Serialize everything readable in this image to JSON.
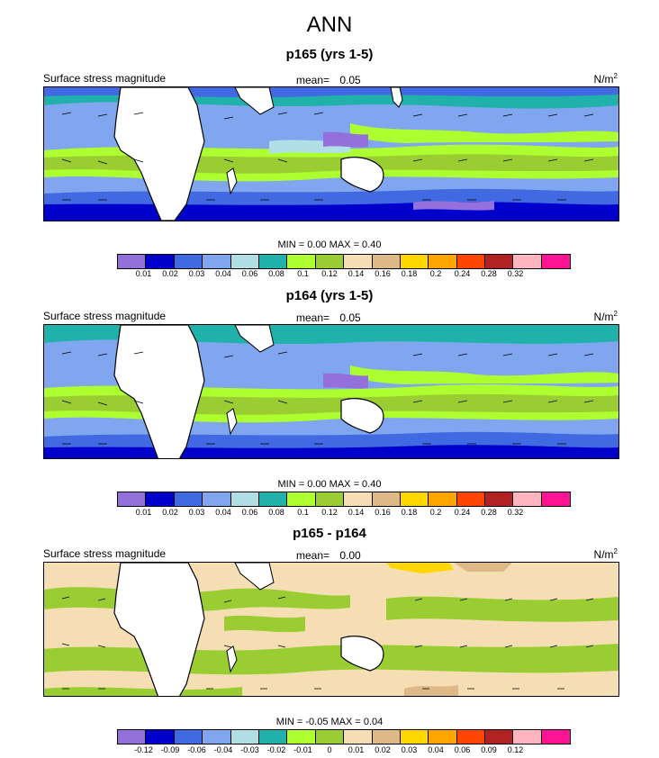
{
  "figure_title": "ANN",
  "colors": {
    "stress_palette": [
      "#9370db",
      "#0000cd",
      "#4169e1",
      "#7fa6ef",
      "#b0e0e6",
      "#20b2aa",
      "#adff2f",
      "#9acd32",
      "#f5deb3",
      "#deb887",
      "#ffd700",
      "#ffa500",
      "#ff4500",
      "#b22222",
      "#ffb6c1",
      "#ff1493"
    ],
    "land": "#ffffff",
    "coast": "#000000"
  },
  "panels": [
    {
      "title": "p165 (yrs 1-5)",
      "variable": "Surface stress magnitude",
      "mean_label": "mean=",
      "mean_value": "0.05",
      "units": "N/m",
      "units_exp": "2",
      "minmax_text": "MIN =  0.00 MAX =  0.40",
      "colorbar_ticks": [
        "0.01",
        "0.02",
        "0.03",
        "0.04",
        "0.06",
        "0.08",
        "0.1",
        "0.12",
        "0.14",
        "0.16",
        "0.18",
        "0.2",
        "0.24",
        "0.28",
        "0.32"
      ]
    },
    {
      "title": "p164 (yrs 1-5)",
      "variable": "Surface stress magnitude",
      "mean_label": "mean=",
      "mean_value": "0.05",
      "units": "N/m",
      "units_exp": "2",
      "minmax_text": "MIN =  0.00 MAX =  0.40",
      "colorbar_ticks": [
        "0.01",
        "0.02",
        "0.03",
        "0.04",
        "0.06",
        "0.08",
        "0.1",
        "0.12",
        "0.14",
        "0.16",
        "0.18",
        "0.2",
        "0.24",
        "0.28",
        "0.32"
      ]
    },
    {
      "title": "p165 - p164",
      "variable": "Surface stress magnitude",
      "mean_label": "mean=",
      "mean_value": "0.00",
      "units": "N/m",
      "units_exp": "2",
      "minmax_text": "MIN = -0.05 MAX =  0.04",
      "colorbar_ticks": [
        "-0.12",
        "-0.09",
        "-0.06",
        "-0.04",
        "-0.03",
        "-0.02",
        "-0.01",
        "0",
        "0.01",
        "0.02",
        "0.03",
        "0.04",
        "0.06",
        "0.09",
        "0.12"
      ]
    }
  ]
}
